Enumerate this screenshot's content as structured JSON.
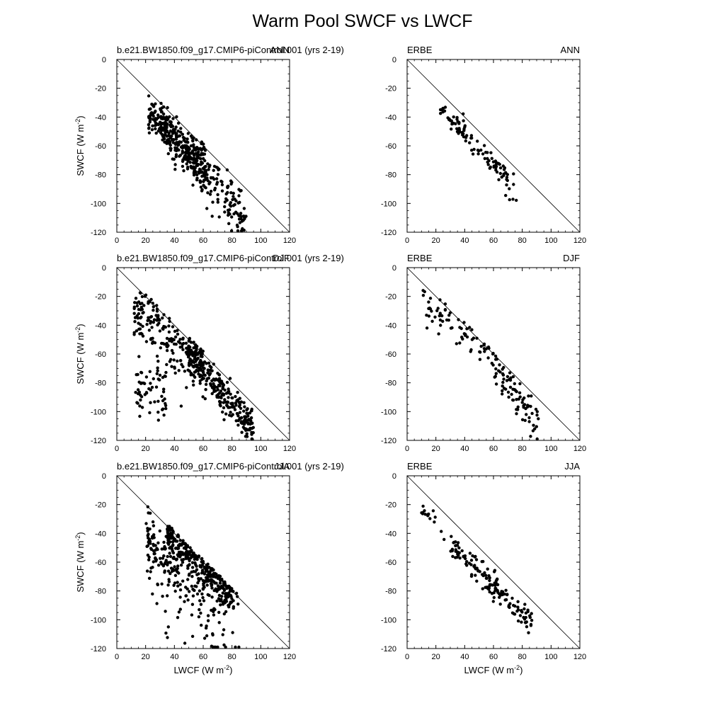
{
  "title": "Warm Pool SWCF vs LWCF",
  "axis_labels": {
    "ylabel_main": "SWCF (W m",
    "xlabel_main": "LWCF (W m",
    "unit_exponent": "-2"
  },
  "chart_data": [
    {
      "type": "scatter",
      "left_title": "b.e21.BW1850.f09_g17.CMIP6-piControl.001 (yrs 2-19)",
      "right_title": "ANN",
      "xlim": [
        0,
        120
      ],
      "ylim": [
        -120,
        0
      ],
      "xticks": [
        0,
        20,
        40,
        60,
        80,
        100,
        120
      ],
      "yticks": [
        0,
        -20,
        -40,
        -60,
        -80,
        -100,
        -120
      ],
      "reference_line": "x = -y",
      "ylabel": "SWCF (W m-2)",
      "xlabel": "",
      "clusters": [
        {
          "n": 260,
          "xr": [
            22,
            62
          ],
          "slope": -0.95,
          "intercept": -17,
          "spread": 6
        },
        {
          "n": 180,
          "xr": [
            30,
            90
          ],
          "slope": -1.1,
          "intercept": -10,
          "spread": 9
        },
        {
          "n": 40,
          "xr": [
            50,
            90
          ],
          "slope": -1.2,
          "intercept": -8,
          "spread": 10
        }
      ]
    },
    {
      "type": "scatter",
      "left_title": "ERBE",
      "right_title": "ANN",
      "xlim": [
        0,
        120
      ],
      "ylim": [
        -120,
        0
      ],
      "xticks": [
        0,
        20,
        40,
        60,
        80,
        100,
        120
      ],
      "yticks": [
        0,
        -20,
        -40,
        -60,
        -80,
        -100,
        -120
      ],
      "reference_line": "x = -y",
      "ylabel": "",
      "xlabel": "",
      "clusters": [
        {
          "n": 90,
          "xr": [
            23,
            70
          ],
          "slope": -1.05,
          "intercept": -10,
          "spread": 4
        },
        {
          "n": 20,
          "xr": [
            55,
            77
          ],
          "slope": -1.2,
          "intercept": -3,
          "spread": 5
        }
      ]
    },
    {
      "type": "scatter",
      "left_title": "b.e21.BW1850.f09_g17.CMIP6-piControl.001 (yrs 2-19)",
      "right_title": "DJF",
      "xlim": [
        0,
        120
      ],
      "ylim": [
        -120,
        0
      ],
      "xticks": [
        0,
        20,
        40,
        60,
        80,
        100,
        120
      ],
      "yticks": [
        0,
        -20,
        -40,
        -60,
        -80,
        -100,
        -120
      ],
      "reference_line": "x = -y",
      "ylabel": "SWCF (W m-2)",
      "xlabel": "",
      "clusters": [
        {
          "n": 220,
          "xr": [
            12,
            60
          ],
          "slope": -0.85,
          "intercept": -18,
          "spread": 10
        },
        {
          "n": 260,
          "xr": [
            50,
            95
          ],
          "slope": -1.15,
          "intercept": -3,
          "spread": 6
        },
        {
          "n": 60,
          "xr": [
            13,
            35
          ],
          "slope": -0.2,
          "intercept": -80,
          "spread": 10
        }
      ]
    },
    {
      "type": "scatter",
      "left_title": "ERBE",
      "right_title": "DJF",
      "xlim": [
        0,
        120
      ],
      "ylim": [
        -120,
        0
      ],
      "xticks": [
        0,
        20,
        40,
        60,
        80,
        100,
        120
      ],
      "yticks": [
        0,
        -20,
        -40,
        -60,
        -80,
        -100,
        -120
      ],
      "reference_line": "x = -y",
      "ylabel": "",
      "xlabel": "",
      "clusters": [
        {
          "n": 70,
          "xr": [
            11,
            60
          ],
          "slope": -0.75,
          "intercept": -15,
          "spread": 7
        },
        {
          "n": 80,
          "xr": [
            60,
            92
          ],
          "slope": -1.3,
          "intercept": 10,
          "spread": 6
        }
      ]
    },
    {
      "type": "scatter",
      "left_title": "b.e21.BW1850.f09_g17.CMIP6-piControl.001 (yrs 2-19)",
      "right_title": "JJA",
      "xlim": [
        0,
        120
      ],
      "ylim": [
        -120,
        0
      ],
      "xticks": [
        0,
        20,
        40,
        60,
        80,
        100,
        120
      ],
      "yticks": [
        0,
        -20,
        -40,
        -60,
        -80,
        -100,
        -120
      ],
      "reference_line": "x = -y",
      "ylabel": "SWCF (W m-2)",
      "xlabel": "LWCF (W m-2)",
      "clusters": [
        {
          "n": 260,
          "xr": [
            35,
            80
          ],
          "slope": -1.0,
          "intercept": -5,
          "spread": 5
        },
        {
          "n": 200,
          "xr": [
            20,
            85
          ],
          "slope": -0.6,
          "intercept": -45,
          "spread": 18
        },
        {
          "n": 60,
          "xr": [
            20,
            40
          ],
          "slope": -0.5,
          "intercept": -35,
          "spread": 8
        }
      ]
    },
    {
      "type": "scatter",
      "left_title": "ERBE",
      "right_title": "JJA",
      "xlim": [
        0,
        120
      ],
      "ylim": [
        -120,
        0
      ],
      "xticks": [
        0,
        20,
        40,
        60,
        80,
        100,
        120
      ],
      "yticks": [
        0,
        -20,
        -40,
        -60,
        -80,
        -100,
        -120
      ],
      "reference_line": "x = -y",
      "ylabel": "",
      "xlabel": "LWCF (W m-2)",
      "clusters": [
        {
          "n": 15,
          "xr": [
            10,
            26
          ],
          "slope": -1.2,
          "intercept": -10,
          "spread": 3
        },
        {
          "n": 150,
          "xr": [
            30,
            87
          ],
          "slope": -0.95,
          "intercept": -20,
          "spread": 5
        }
      ]
    }
  ]
}
